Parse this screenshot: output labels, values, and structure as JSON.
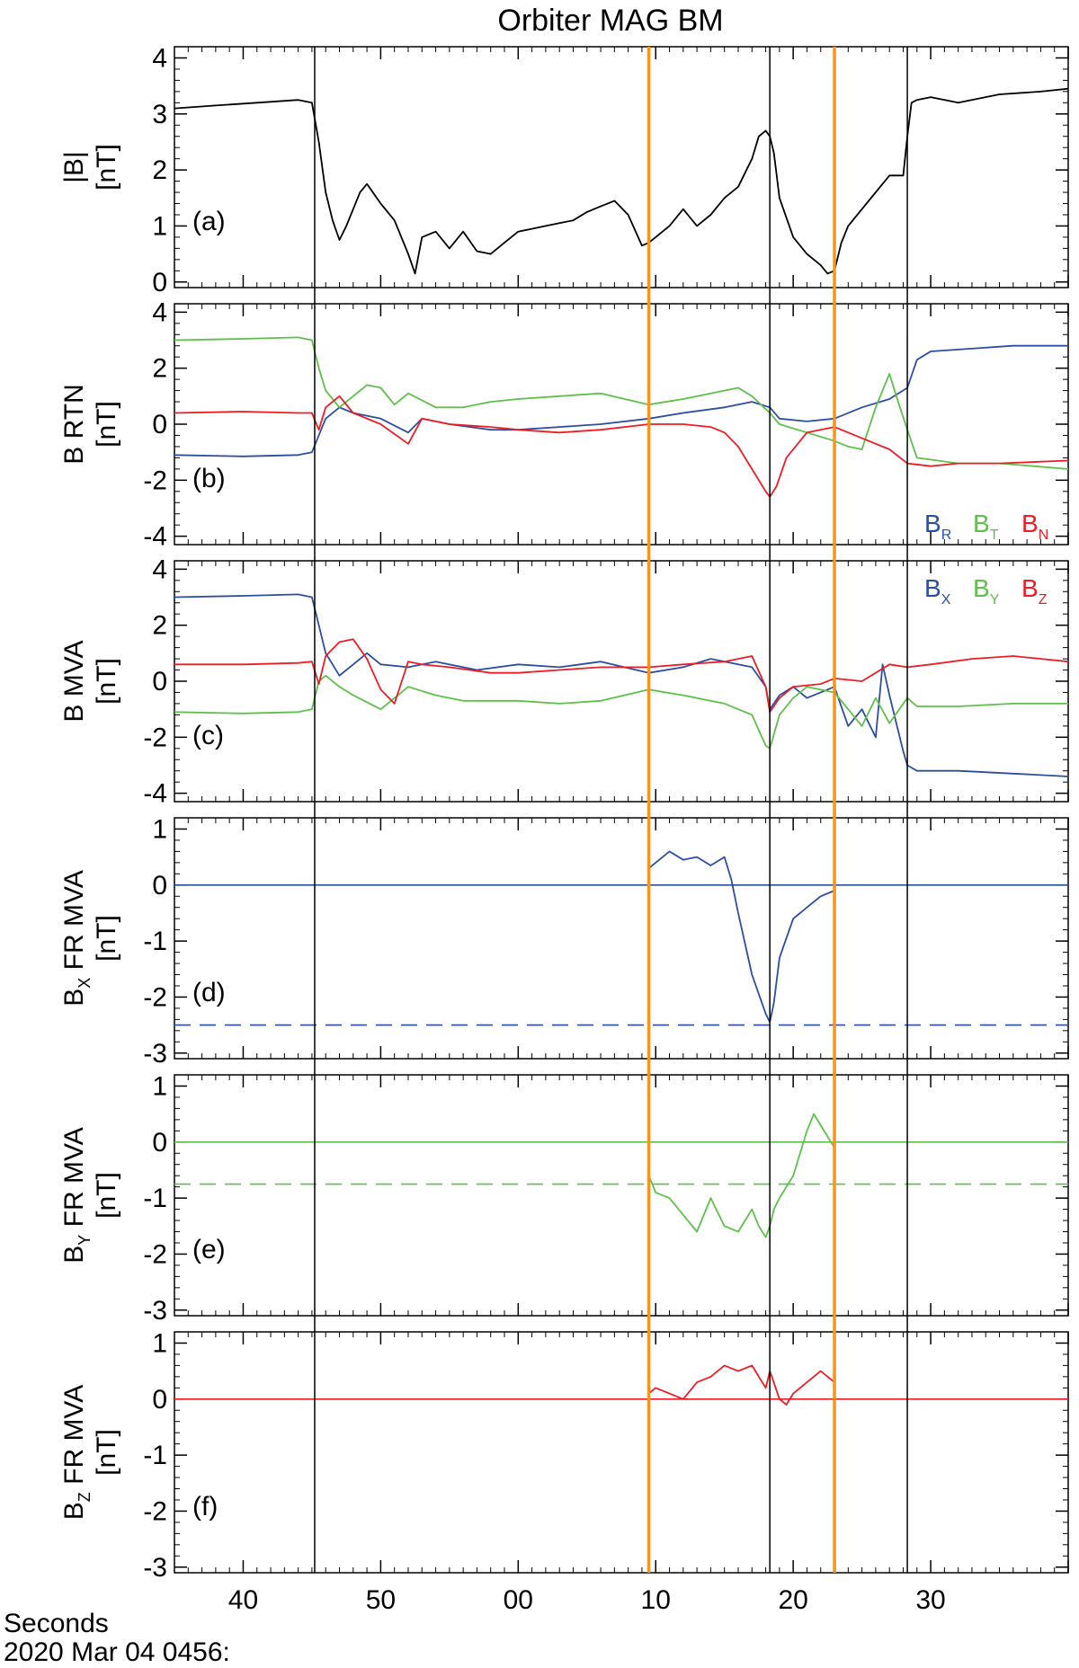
{
  "chart_data": {
    "type": "line",
    "title": "Orbiter MAG BM",
    "x_axis": {
      "label_line1": "Seconds",
      "label_line2": "2020 Mar 04 0456:",
      "range": [
        35,
        100
      ],
      "ticks": [
        {
          "pos": 40,
          "label": "40"
        },
        {
          "pos": 50,
          "label": "50"
        },
        {
          "pos": 60,
          "label": "00"
        },
        {
          "pos": 70,
          "label": "10"
        },
        {
          "pos": 80,
          "label": "20"
        },
        {
          "pos": 90,
          "label": "30"
        }
      ]
    },
    "markers": [
      {
        "x": 45.2,
        "color": "#000000"
      },
      {
        "x": 78.3,
        "color": "#000000"
      },
      {
        "x": 88.3,
        "color": "#000000"
      },
      {
        "x": 69.5,
        "color": "#f7941d"
      },
      {
        "x": 83.0,
        "color": "#f7941d"
      }
    ],
    "panels": [
      {
        "id": "a",
        "tag": "(a)",
        "ylabel_line1": "|B|",
        "ylabel_line2": "[nT]",
        "ylim": [
          -0.1,
          4.2
        ],
        "yticks": [
          0,
          1,
          2,
          3,
          4
        ],
        "series": [
          {
            "color": "#000000",
            "x": [
              35,
              38,
              41,
              44,
              45,
              45.5,
              46,
              46.5,
              47,
              47.5,
              48,
              48.5,
              49,
              50,
              51,
              52,
              52.5,
              53,
              54,
              55,
              56,
              57,
              58,
              59,
              60,
              61,
              62,
              63,
              64,
              65,
              66,
              67,
              68,
              69,
              69.5,
              70,
              71,
              72,
              73,
              74,
              75,
              76,
              77,
              77.5,
              78,
              78.3,
              78.6,
              79,
              80,
              81,
              82,
              82.5,
              83,
              83.5,
              84,
              85,
              86,
              87,
              88,
              88.3,
              88.6,
              89,
              90,
              92,
              95,
              98,
              100
            ],
            "y": [
              3.1,
              3.15,
              3.2,
              3.25,
              3.2,
              2.5,
              1.6,
              1.1,
              0.75,
              1.0,
              1.3,
              1.6,
              1.75,
              1.4,
              1.1,
              0.5,
              0.15,
              0.8,
              0.9,
              0.6,
              0.9,
              0.55,
              0.5,
              0.7,
              0.9,
              0.95,
              1.0,
              1.05,
              1.1,
              1.25,
              1.35,
              1.45,
              1.2,
              0.65,
              0.7,
              0.8,
              1.0,
              1.3,
              1.0,
              1.2,
              1.5,
              1.7,
              2.2,
              2.6,
              2.7,
              2.6,
              2.3,
              1.5,
              0.8,
              0.5,
              0.3,
              0.15,
              0.2,
              0.7,
              1.0,
              1.3,
              1.6,
              1.9,
              1.9,
              2.6,
              3.2,
              3.25,
              3.3,
              3.2,
              3.35,
              3.4,
              3.45
            ]
          }
        ]
      },
      {
        "id": "b",
        "tag": "(b)",
        "ylabel_line1": "B RTN",
        "ylabel_line2": "[nT]",
        "ylim": [
          -4.3,
          4.3
        ],
        "yticks": [
          -4,
          -2,
          0,
          2,
          4
        ],
        "legend": [
          {
            "main": "B",
            "sub": "R",
            "color": "#2b4ea2"
          },
          {
            "main": "B",
            "sub": "T",
            "color": "#5ec04a"
          },
          {
            "main": "B",
            "sub": "N",
            "color": "#ee1c24"
          }
        ],
        "series": [
          {
            "color": "#2b4ea2",
            "x": [
              35,
              40,
              44,
              45,
              46,
              47,
              48,
              50,
              52,
              53,
              55,
              58,
              60,
              63,
              66,
              69.5,
              72,
              75,
              77,
              78.3,
              79,
              81,
              83,
              85,
              87,
              88.3,
              89,
              90,
              93,
              96,
              100
            ],
            "y": [
              -1.1,
              -1.15,
              -1.1,
              -1.0,
              0.2,
              0.6,
              0.4,
              0.2,
              -0.3,
              0.2,
              0.0,
              -0.2,
              -0.2,
              -0.1,
              0.0,
              0.2,
              0.4,
              0.6,
              0.8,
              0.6,
              0.2,
              0.1,
              0.2,
              0.6,
              0.9,
              1.3,
              2.3,
              2.6,
              2.7,
              2.8,
              2.8
            ]
          },
          {
            "color": "#5ec04a",
            "x": [
              35,
              40,
              44,
              45,
              45.5,
              46,
              47,
              48,
              49,
              50,
              51,
              52,
              54,
              56,
              58,
              60,
              63,
              66,
              69.5,
              72,
              74,
              76,
              77,
              78.3,
              79,
              81,
              83,
              84,
              85,
              86,
              87,
              87.5,
              88.3,
              89,
              92,
              95,
              100
            ],
            "y": [
              3.0,
              3.05,
              3.1,
              3.0,
              2.0,
              1.2,
              0.6,
              1.0,
              1.4,
              1.3,
              0.7,
              1.1,
              0.6,
              0.6,
              0.8,
              0.9,
              1.0,
              1.1,
              0.7,
              0.9,
              1.1,
              1.3,
              1.0,
              0.4,
              0.0,
              -0.3,
              -0.6,
              -0.8,
              -0.9,
              0.6,
              1.8,
              1.0,
              -0.2,
              -1.2,
              -1.4,
              -1.4,
              -1.6
            ]
          },
          {
            "color": "#ee1c24",
            "x": [
              35,
              40,
              44,
              45,
              45.5,
              46,
              47,
              48,
              50,
              52,
              53,
              55,
              58,
              60,
              63,
              66,
              69.5,
              72,
              74,
              75,
              76,
              77,
              78,
              78.3,
              78.8,
              79.5,
              81,
              83,
              85,
              87,
              88.3,
              90,
              92,
              95,
              100
            ],
            "y": [
              0.4,
              0.45,
              0.4,
              0.4,
              -0.2,
              0.6,
              1.0,
              0.4,
              0.0,
              -0.7,
              0.2,
              0.0,
              -0.1,
              -0.2,
              -0.3,
              -0.2,
              0.0,
              0.0,
              -0.1,
              -0.3,
              -0.8,
              -1.6,
              -2.4,
              -2.6,
              -2.2,
              -1.2,
              -0.3,
              -0.1,
              -0.5,
              -0.9,
              -1.4,
              -1.5,
              -1.4,
              -1.4,
              -1.3
            ]
          }
        ]
      },
      {
        "id": "c",
        "tag": "(c)",
        "ylabel_line1": "B MVA",
        "ylabel_line2": "[nT]",
        "ylim": [
          -4.3,
          4.3
        ],
        "yticks": [
          -4,
          -2,
          0,
          2,
          4
        ],
        "legend": [
          {
            "main": "B",
            "sub": "X",
            "color": "#2b4ea2"
          },
          {
            "main": "B",
            "sub": "Y",
            "color": "#5ec04a"
          },
          {
            "main": "B",
            "sub": "Z",
            "color": "#ee1c24"
          }
        ],
        "series": [
          {
            "color": "#2b4ea2",
            "x": [
              35,
              40,
              44,
              45,
              45.5,
              46,
              47,
              48,
              49,
              50,
              52,
              54,
              57,
              60,
              63,
              66,
              69.5,
              72,
              74,
              76,
              77,
              78,
              78.3,
              79,
              80,
              81,
              83,
              84,
              85,
              86,
              86.5,
              87,
              88,
              88.3,
              89,
              92,
              96,
              100
            ],
            "y": [
              3.0,
              3.05,
              3.1,
              3.0,
              2.0,
              1.0,
              0.2,
              0.6,
              1.0,
              0.6,
              0.5,
              0.7,
              0.4,
              0.6,
              0.5,
              0.7,
              0.3,
              0.5,
              0.8,
              0.6,
              0.5,
              -0.2,
              -1.0,
              -0.5,
              -0.2,
              -0.6,
              -0.2,
              -1.6,
              -1.0,
              -2.0,
              0.6,
              -0.5,
              -2.5,
              -3.0,
              -3.2,
              -3.2,
              -3.3,
              -3.4
            ]
          },
          {
            "color": "#5ec04a",
            "x": [
              35,
              40,
              44,
              45,
              45.5,
              46,
              47,
              48,
              50,
              52,
              54,
              56,
              58,
              60,
              63,
              66,
              69.5,
              72,
              75,
              77,
              78,
              78.3,
              79,
              80,
              81,
              83,
              84,
              85,
              86,
              87,
              88.3,
              89,
              92,
              96,
              100
            ],
            "y": [
              -1.1,
              -1.15,
              -1.1,
              -1.0,
              0.0,
              0.2,
              -0.2,
              -0.5,
              -1.0,
              -0.2,
              -0.5,
              -0.7,
              -0.7,
              -0.7,
              -0.8,
              -0.7,
              -0.3,
              -0.5,
              -0.8,
              -1.2,
              -2.3,
              -2.4,
              -1.2,
              -0.6,
              -0.2,
              -0.4,
              -1.0,
              -1.6,
              -0.6,
              -1.5,
              -0.6,
              -0.9,
              -0.9,
              -0.8,
              -0.8
            ]
          },
          {
            "color": "#ee1c24",
            "x": [
              35,
              40,
              44,
              45,
              45.5,
              46,
              47,
              48,
              49,
              50,
              51,
              52,
              53,
              55,
              58,
              60,
              63,
              66,
              69.5,
              72,
              75,
              77,
              78,
              78.3,
              79,
              80,
              82,
              83,
              85,
              87,
              88.3,
              90,
              93,
              96,
              100
            ],
            "y": [
              0.6,
              0.6,
              0.65,
              0.7,
              -0.1,
              0.9,
              1.4,
              1.5,
              0.8,
              -0.3,
              -0.8,
              0.7,
              0.6,
              0.5,
              0.3,
              0.3,
              0.4,
              0.5,
              0.5,
              0.6,
              0.7,
              0.9,
              -0.2,
              -1.1,
              -0.6,
              -0.2,
              -0.1,
              0.1,
              0.0,
              0.6,
              0.5,
              0.6,
              0.8,
              0.9,
              0.7
            ]
          }
        ]
      },
      {
        "id": "d",
        "tag": "(d)",
        "ylabel_main": "B",
        "ylabel_sub": "X",
        "ylabel_rest": " FR MVA",
        "ylabel_line2": "[nT]",
        "ylim": [
          -3.1,
          1.2
        ],
        "yticks": [
          -3,
          -2,
          -1,
          0,
          1
        ],
        "ytick_labels": [
          "-3",
          "-2",
          "-1",
          "0",
          "1"
        ],
        "hlines": [
          {
            "y": 0,
            "color": "#2b4ea2",
            "dashed": false
          },
          {
            "y": -2.5,
            "color": "#2b4ea2",
            "dashed": true
          }
        ],
        "series": [
          {
            "color": "#2b4ea2",
            "x": [
              69.5,
              70,
              71,
              72,
              73,
              74,
              75,
              75.5,
              76,
              77,
              78,
              78.3,
              78.6,
              79,
              80,
              81,
              82,
              83
            ],
            "y": [
              0.3,
              0.4,
              0.6,
              0.45,
              0.5,
              0.35,
              0.5,
              0.1,
              -0.5,
              -1.6,
              -2.3,
              -2.45,
              -2.1,
              -1.3,
              -0.6,
              -0.4,
              -0.2,
              -0.1
            ]
          }
        ]
      },
      {
        "id": "e",
        "tag": "(e)",
        "ylabel_main": "B",
        "ylabel_sub": "Y",
        "ylabel_rest": " FR MVA",
        "ylabel_line2": "[nT]",
        "ylim": [
          -3.1,
          1.2
        ],
        "yticks": [
          -3,
          -2,
          -1,
          0,
          1
        ],
        "ytick_labels": [
          "-3",
          "-2",
          "-1",
          "0",
          "1"
        ],
        "hlines": [
          {
            "y": 0,
            "color": "#5ec04a",
            "dashed": false
          },
          {
            "y": -0.75,
            "color": "#5ec04a",
            "dashed": true
          }
        ],
        "series": [
          {
            "color": "#5ec04a",
            "x": [
              69.5,
              70,
              71,
              72,
              73,
              74,
              75,
              76,
              77,
              77.5,
              78,
              78.3,
              78.6,
              79,
              80,
              81,
              81.5,
              82,
              83
            ],
            "y": [
              -0.6,
              -0.9,
              -1.0,
              -1.3,
              -1.6,
              -1.0,
              -1.5,
              -1.6,
              -1.2,
              -1.5,
              -1.7,
              -1.5,
              -1.2,
              -1.0,
              -0.6,
              0.2,
              0.5,
              0.3,
              -0.1
            ]
          }
        ]
      },
      {
        "id": "f",
        "tag": "(f)",
        "ylabel_main": "B",
        "ylabel_sub": "Z",
        "ylabel_rest": " FR MVA",
        "ylabel_line2": "[nT]",
        "ylim": [
          -3.1,
          1.2
        ],
        "yticks": [
          -3,
          -2,
          -1,
          0,
          1
        ],
        "ytick_labels": [
          "-3",
          "-2",
          "-1",
          "0",
          "1"
        ],
        "hlines": [
          {
            "y": 0,
            "color": "#ee1c24",
            "dashed": false
          }
        ],
        "series": [
          {
            "color": "#ee1c24",
            "x": [
              69.5,
              70,
              71,
              72,
              73,
              74,
              75,
              76,
              77,
              78,
              78.3,
              79,
              79.5,
              80,
              81,
              82,
              83
            ],
            "y": [
              0.1,
              0.2,
              0.1,
              0.0,
              0.3,
              0.4,
              0.6,
              0.5,
              0.6,
              0.2,
              0.5,
              0.0,
              -0.1,
              0.1,
              0.3,
              0.5,
              0.3
            ]
          }
        ]
      }
    ]
  }
}
